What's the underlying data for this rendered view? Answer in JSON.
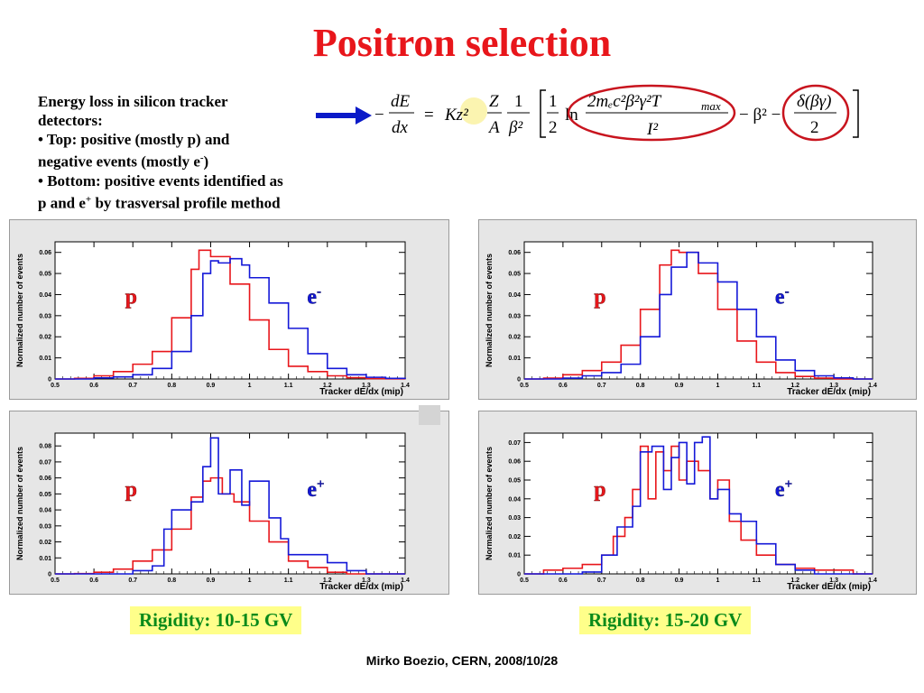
{
  "title": "Positron selection",
  "description": {
    "line1": "Energy loss in silicon tracker",
    "line2": "detectors:",
    "line3": "• Top: positive (mostly p) and",
    "line4a": "negative events (mostly e",
    "line4sup": "-",
    "line4b": ")",
    "line5": "• Bottom: positive events identified as",
    "line6a": "p and e",
    "line6sup": "+",
    "line6b": " by trasversal profile method"
  },
  "formula": {
    "minus": "−",
    "dE": "dE",
    "dx": "dx",
    "eq": "=",
    "Kz2": "Kz²",
    "Z": "Z",
    "A": "A",
    "one": "1",
    "beta2": "β²",
    "half_num": "1",
    "half_den": "2",
    "ln": "ln",
    "log_num": "2mₑc²β²γ²T",
    "log_num_sub": "max",
    "log_den": "I²",
    "minus_beta2": "− β² −",
    "delta_num": "δ(βγ)",
    "delta_den": "2"
  },
  "colors": {
    "title": "#e8161b",
    "proton": "#e8161b",
    "electron": "#1418d8",
    "rigidity_text": "#0a8a1a",
    "rigidity_bg": "#ffff8a",
    "arrow": "#0a1ac8",
    "circle": "#c8141e"
  },
  "rigidity": [
    "Rigidity: 10-15 GV",
    "Rigidity: 15-20 GV"
  ],
  "footer": "Mirko Boezio, CERN, 2008/10/28",
  "chart_data": [
    {
      "type": "line",
      "step": true,
      "xlabel": "Tracker dE/dx (mip)",
      "ylabel": "Normalized number of events",
      "xlim": [
        0.5,
        1.4
      ],
      "ylim": [
        0,
        0.065
      ],
      "x_ticks": [
        "0.5",
        "0.6",
        "0.7",
        "0.8",
        "0.9",
        "1",
        "1.1",
        "1.2",
        "1.3",
        "1.4"
      ],
      "y_ticks": [
        "0",
        "0.01",
        "0.02",
        "0.03",
        "0.04",
        "0.05",
        "0.06"
      ],
      "labels": {
        "p": "p",
        "e": "e",
        "e_sup": "-"
      },
      "series": [
        {
          "color": "#e8161b",
          "values": [
            [
              0.55,
              0.0003
            ],
            [
              0.6,
              0.0015
            ],
            [
              0.65,
              0.0035
            ],
            [
              0.7,
              0.007
            ],
            [
              0.75,
              0.013
            ],
            [
              0.8,
              0.029
            ],
            [
              0.85,
              0.052
            ],
            [
              0.87,
              0.061
            ],
            [
              0.9,
              0.058
            ],
            [
              0.95,
              0.045
            ],
            [
              1.0,
              0.028
            ],
            [
              1.05,
              0.014
            ],
            [
              1.1,
              0.006
            ],
            [
              1.15,
              0.0035
            ],
            [
              1.2,
              0.0015
            ],
            [
              1.25,
              0.0006
            ],
            [
              1.3,
              0.0002
            ],
            [
              1.35,
              0.0001
            ]
          ]
        },
        {
          "color": "#1418d8",
          "values": [
            [
              0.6,
              0.0005
            ],
            [
              0.65,
              0.001
            ],
            [
              0.7,
              0.002
            ],
            [
              0.75,
              0.005
            ],
            [
              0.8,
              0.013
            ],
            [
              0.85,
              0.03
            ],
            [
              0.88,
              0.05
            ],
            [
              0.9,
              0.056
            ],
            [
              0.92,
              0.055
            ],
            [
              0.95,
              0.057
            ],
            [
              0.98,
              0.054
            ],
            [
              1.0,
              0.048
            ],
            [
              1.05,
              0.036
            ],
            [
              1.1,
              0.024
            ],
            [
              1.15,
              0.012
            ],
            [
              1.2,
              0.005
            ],
            [
              1.25,
              0.002
            ],
            [
              1.3,
              0.0008
            ],
            [
              1.35,
              0.0003
            ]
          ]
        }
      ]
    },
    {
      "type": "line",
      "step": true,
      "xlabel": "Tracker dE/dx (mip)",
      "ylabel": "Normalized number of events",
      "xlim": [
        0.5,
        1.4
      ],
      "ylim": [
        0,
        0.065
      ],
      "x_ticks": [
        "0.5",
        "0.6",
        "0.7",
        "0.8",
        "0.9",
        "1",
        "1.1",
        "1.2",
        "1.3",
        "1.4"
      ],
      "y_ticks": [
        "0",
        "0.01",
        "0.02",
        "0.03",
        "0.04",
        "0.05",
        "0.06"
      ],
      "labels": {
        "p": "p",
        "e": "e",
        "e_sup": "-"
      },
      "series": [
        {
          "color": "#e8161b",
          "values": [
            [
              0.55,
              0.0004
            ],
            [
              0.6,
              0.002
            ],
            [
              0.65,
              0.004
            ],
            [
              0.7,
              0.008
            ],
            [
              0.75,
              0.016
            ],
            [
              0.8,
              0.033
            ],
            [
              0.85,
              0.054
            ],
            [
              0.88,
              0.061
            ],
            [
              0.9,
              0.06
            ],
            [
              0.95,
              0.05
            ],
            [
              1.0,
              0.033
            ],
            [
              1.05,
              0.018
            ],
            [
              1.1,
              0.008
            ],
            [
              1.15,
              0.003
            ],
            [
              1.2,
              0.0012
            ],
            [
              1.25,
              0.0004
            ]
          ]
        },
        {
          "color": "#1418d8",
          "values": [
            [
              0.6,
              0.0004
            ],
            [
              0.65,
              0.0015
            ],
            [
              0.7,
              0.003
            ],
            [
              0.75,
              0.007
            ],
            [
              0.8,
              0.02
            ],
            [
              0.85,
              0.04
            ],
            [
              0.88,
              0.053
            ],
            [
              0.92,
              0.06
            ],
            [
              0.95,
              0.055
            ],
            [
              1.0,
              0.046
            ],
            [
              1.05,
              0.033
            ],
            [
              1.1,
              0.02
            ],
            [
              1.15,
              0.009
            ],
            [
              1.2,
              0.004
            ],
            [
              1.25,
              0.0015
            ],
            [
              1.3,
              0.0005
            ]
          ]
        }
      ]
    },
    {
      "type": "line",
      "step": true,
      "xlabel": "Tracker dE/dx (mip)",
      "ylabel": "Normalized number of events",
      "xlim": [
        0.5,
        1.4
      ],
      "ylim": [
        0,
        0.088
      ],
      "x_ticks": [
        "0.5",
        "0.6",
        "0.7",
        "0.8",
        "0.9",
        "1",
        "1.1",
        "1.2",
        "1.3",
        "1.4"
      ],
      "y_ticks": [
        "0",
        "0.01",
        "0.02",
        "0.03",
        "0.04",
        "0.05",
        "0.06",
        "0.07",
        "0.08"
      ],
      "labels": {
        "p": "p",
        "e": "e",
        "e_sup": "+"
      },
      "series": [
        {
          "color": "#e8161b",
          "values": [
            [
              0.55,
              0.0002
            ],
            [
              0.6,
              0.001
            ],
            [
              0.65,
              0.003
            ],
            [
              0.7,
              0.008
            ],
            [
              0.75,
              0.015
            ],
            [
              0.8,
              0.028
            ],
            [
              0.85,
              0.048
            ],
            [
              0.88,
              0.058
            ],
            [
              0.9,
              0.06
            ],
            [
              0.93,
              0.05
            ],
            [
              0.96,
              0.045
            ],
            [
              1.0,
              0.033
            ],
            [
              1.05,
              0.02
            ],
            [
              1.1,
              0.008
            ],
            [
              1.15,
              0.004
            ],
            [
              1.2,
              0.001
            ]
          ]
        },
        {
          "color": "#1418d8",
          "values": [
            [
              0.7,
              0.002
            ],
            [
              0.75,
              0.005
            ],
            [
              0.78,
              0.028
            ],
            [
              0.8,
              0.04
            ],
            [
              0.85,
              0.045
            ],
            [
              0.88,
              0.067
            ],
            [
              0.9,
              0.085
            ],
            [
              0.92,
              0.05
            ],
            [
              0.95,
              0.065
            ],
            [
              0.98,
              0.043
            ],
            [
              1.0,
              0.058
            ],
            [
              1.05,
              0.035
            ],
            [
              1.08,
              0.022
            ],
            [
              1.1,
              0.012
            ],
            [
              1.15,
              0.012
            ],
            [
              1.2,
              0.007
            ],
            [
              1.25,
              0.002
            ]
          ]
        }
      ]
    },
    {
      "type": "line",
      "step": true,
      "xlabel": "Tracker dE/dx (mip)",
      "ylabel": "Normalized number of events",
      "xlim": [
        0.5,
        1.4
      ],
      "ylim": [
        0,
        0.075
      ],
      "x_ticks": [
        "0.5",
        "0.6",
        "0.7",
        "0.8",
        "0.9",
        "1",
        "1.1",
        "1.2",
        "1.3",
        "1.4"
      ],
      "y_ticks": [
        "0",
        "0.01",
        "0.02",
        "0.03",
        "0.04",
        "0.05",
        "0.06",
        "0.07"
      ],
      "labels": {
        "p": "p",
        "e": "e",
        "e_sup": "+"
      },
      "series": [
        {
          "color": "#e8161b",
          "values": [
            [
              0.55,
              0.002
            ],
            [
              0.6,
              0.003
            ],
            [
              0.65,
              0.005
            ],
            [
              0.7,
              0.01
            ],
            [
              0.73,
              0.02
            ],
            [
              0.76,
              0.03
            ],
            [
              0.78,
              0.045
            ],
            [
              0.8,
              0.068
            ],
            [
              0.82,
              0.04
            ],
            [
              0.84,
              0.065
            ],
            [
              0.86,
              0.055
            ],
            [
              0.88,
              0.068
            ],
            [
              0.9,
              0.05
            ],
            [
              0.92,
              0.06
            ],
            [
              0.95,
              0.055
            ],
            [
              0.98,
              0.04
            ],
            [
              1.0,
              0.05
            ],
            [
              1.03,
              0.028
            ],
            [
              1.06,
              0.018
            ],
            [
              1.1,
              0.01
            ],
            [
              1.15,
              0.005
            ],
            [
              1.2,
              0.003
            ],
            [
              1.25,
              0.002
            ],
            [
              1.3,
              0.002
            ]
          ]
        },
        {
          "color": "#1418d8",
          "values": [
            [
              0.65,
              0.001
            ],
            [
              0.7,
              0.01
            ],
            [
              0.74,
              0.025
            ],
            [
              0.78,
              0.036
            ],
            [
              0.8,
              0.065
            ],
            [
              0.83,
              0.068
            ],
            [
              0.86,
              0.045
            ],
            [
              0.88,
              0.062
            ],
            [
              0.9,
              0.07
            ],
            [
              0.92,
              0.048
            ],
            [
              0.94,
              0.07
            ],
            [
              0.96,
              0.073
            ],
            [
              0.98,
              0.04
            ],
            [
              1.0,
              0.045
            ],
            [
              1.03,
              0.032
            ],
            [
              1.06,
              0.028
            ],
            [
              1.1,
              0.016
            ],
            [
              1.15,
              0.005
            ],
            [
              1.2,
              0.002
            ]
          ]
        }
      ]
    }
  ]
}
